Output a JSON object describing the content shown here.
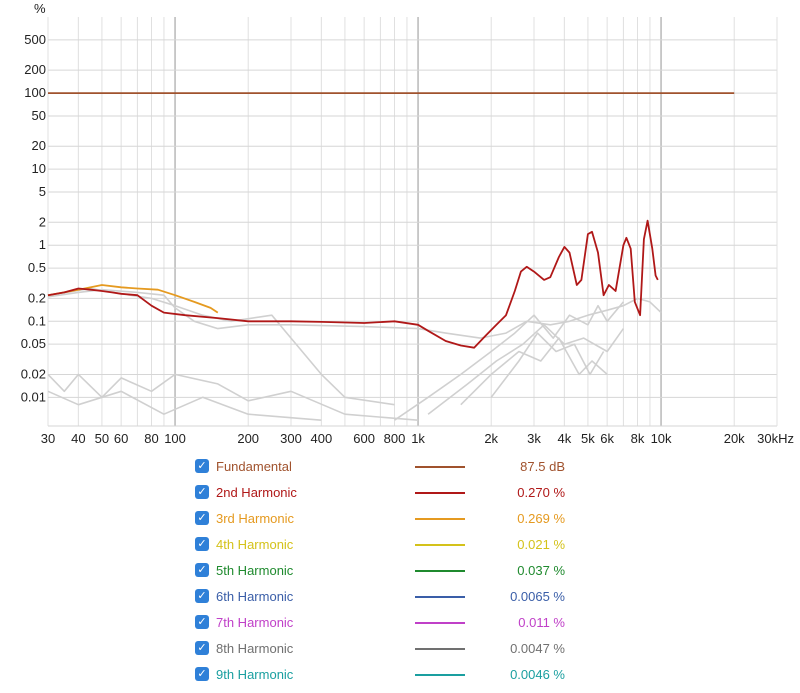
{
  "chart_data": {
    "type": "line",
    "ylabel": "%",
    "y_scale": "log",
    "x_scale": "log",
    "xlim": [
      30,
      30000
    ],
    "ylim": [
      0.0042,
      1000
    ],
    "y_ticks": [
      {
        "v": 500,
        "label": "500"
      },
      {
        "v": 200,
        "label": "200"
      },
      {
        "v": 100,
        "label": "100"
      },
      {
        "v": 50,
        "label": "50"
      },
      {
        "v": 20,
        "label": "20"
      },
      {
        "v": 10,
        "label": "10"
      },
      {
        "v": 5,
        "label": "5"
      },
      {
        "v": 2,
        "label": "2"
      },
      {
        "v": 1,
        "label": "1"
      },
      {
        "v": 0.5,
        "label": "0.5"
      },
      {
        "v": 0.2,
        "label": "0.2"
      },
      {
        "v": 0.1,
        "label": "0.1"
      },
      {
        "v": 0.05,
        "label": "0.05"
      },
      {
        "v": 0.02,
        "label": "0.02"
      },
      {
        "v": 0.01,
        "label": "0.01"
      }
    ],
    "x_ticks": [
      {
        "v": 30,
        "label": "30"
      },
      {
        "v": 40,
        "label": "40"
      },
      {
        "v": 50,
        "label": "50"
      },
      {
        "v": 60,
        "label": "60"
      },
      {
        "v": 80,
        "label": "80"
      },
      {
        "v": 100,
        "label": "100"
      },
      {
        "v": 200,
        "label": "200"
      },
      {
        "v": 300,
        "label": "300"
      },
      {
        "v": 400,
        "label": "400"
      },
      {
        "v": 600,
        "label": "600"
      },
      {
        "v": 800,
        "label": "800"
      },
      {
        "v": 1000,
        "label": "1k"
      },
      {
        "v": 2000,
        "label": "2k"
      },
      {
        "v": 3000,
        "label": "3k"
      },
      {
        "v": 4000,
        "label": "4k"
      },
      {
        "v": 5000,
        "label": "5k"
      },
      {
        "v": 6000,
        "label": "6k"
      },
      {
        "v": 8000,
        "label": "8k"
      },
      {
        "v": 10000,
        "label": "10k"
      },
      {
        "v": 20000,
        "label": "20k"
      },
      {
        "v": 30000,
        "label": "30kHz"
      }
    ],
    "grid": true,
    "legend_position": "bottom",
    "series": [
      {
        "name": "Fundamental",
        "value": "87.5 dB",
        "color": "#a0522d",
        "points": [
          [
            30,
            100
          ],
          [
            20000,
            100
          ]
        ]
      },
      {
        "name": "2nd Harmonic",
        "value": "0.270 %",
        "color": "#b01818",
        "points": [
          [
            30,
            0.22
          ],
          [
            35,
            0.24
          ],
          [
            40,
            0.27
          ],
          [
            45,
            0.26
          ],
          [
            50,
            0.25
          ],
          [
            55,
            0.24
          ],
          [
            60,
            0.23
          ],
          [
            70,
            0.22
          ],
          [
            80,
            0.16
          ],
          [
            90,
            0.13
          ],
          [
            110,
            0.12
          ],
          [
            150,
            0.11
          ],
          [
            200,
            0.1
          ],
          [
            300,
            0.1
          ],
          [
            400,
            0.098
          ],
          [
            600,
            0.095
          ],
          [
            800,
            0.1
          ],
          [
            1000,
            0.09
          ],
          [
            1100,
            0.075
          ],
          [
            1300,
            0.055
          ],
          [
            1500,
            0.048
          ],
          [
            1700,
            0.045
          ],
          [
            1900,
            0.065
          ],
          [
            2100,
            0.09
          ],
          [
            2300,
            0.12
          ],
          [
            2500,
            0.25
          ],
          [
            2650,
            0.45
          ],
          [
            2800,
            0.52
          ],
          [
            3000,
            0.45
          ],
          [
            3300,
            0.35
          ],
          [
            3500,
            0.38
          ],
          [
            3800,
            0.7
          ],
          [
            4000,
            0.95
          ],
          [
            4200,
            0.8
          ],
          [
            4500,
            0.3
          ],
          [
            4700,
            0.35
          ],
          [
            5000,
            1.4
          ],
          [
            5200,
            1.5
          ],
          [
            5500,
            0.8
          ],
          [
            5800,
            0.22
          ],
          [
            6100,
            0.3
          ],
          [
            6500,
            0.25
          ],
          [
            7000,
            1.0
          ],
          [
            7200,
            1.25
          ],
          [
            7500,
            0.9
          ],
          [
            7800,
            0.18
          ],
          [
            8200,
            0.12
          ],
          [
            8500,
            1.2
          ],
          [
            8800,
            2.1
          ],
          [
            9200,
            0.9
          ],
          [
            9500,
            0.4
          ],
          [
            9700,
            0.35
          ]
        ]
      },
      {
        "name": "3rd Harmonic",
        "value": "0.269 %",
        "color": "#e59a20",
        "points": [
          [
            30,
            0.22
          ],
          [
            40,
            0.26
          ],
          [
            50,
            0.3
          ],
          [
            60,
            0.28
          ],
          [
            70,
            0.27
          ],
          [
            85,
            0.26
          ],
          [
            100,
            0.22
          ],
          [
            120,
            0.18
          ],
          [
            140,
            0.15
          ],
          [
            150,
            0.13
          ]
        ]
      },
      {
        "name": "4th Harmonic",
        "value": "0.021 %",
        "color": "#d4c21a",
        "points": []
      },
      {
        "name": "5th Harmonic",
        "value": "0.037 %",
        "color": "#1f8a2e",
        "points": []
      },
      {
        "name": "6th Harmonic",
        "value": "0.0065 %",
        "color": "#3a5ea8",
        "points": []
      },
      {
        "name": "7th Harmonic",
        "value": "0.011 %",
        "color": "#c040c8",
        "points": []
      },
      {
        "name": "8th Harmonic",
        "value": "0.0047 %",
        "color": "#707070",
        "points": []
      },
      {
        "name": "9th Harmonic",
        "value": "0.0046 %",
        "color": "#1a9fa0",
        "points": []
      }
    ],
    "background_series": [
      [
        [
          30,
          0.21
        ],
        [
          40,
          0.24
        ],
        [
          50,
          0.26
        ],
        [
          70,
          0.24
        ],
        [
          90,
          0.22
        ],
        [
          100,
          0.15
        ],
        [
          120,
          0.1
        ],
        [
          150,
          0.08
        ],
        [
          200,
          0.09
        ],
        [
          300,
          0.09
        ],
        [
          600,
          0.085
        ],
        [
          1000,
          0.08
        ],
        [
          1300,
          0.07
        ],
        [
          1800,
          0.06
        ],
        [
          2300,
          0.07
        ],
        [
          2800,
          0.1
        ],
        [
          3500,
          0.09
        ],
        [
          4200,
          0.1
        ],
        [
          5000,
          0.12
        ],
        [
          6000,
          0.14
        ],
        [
          7000,
          0.16
        ],
        [
          8000,
          0.2
        ],
        [
          9000,
          0.18
        ],
        [
          10000,
          0.13
        ]
      ],
      [
        [
          30,
          0.22
        ],
        [
          45,
          0.27
        ],
        [
          60,
          0.23
        ],
        [
          80,
          0.2
        ],
        [
          100,
          0.16
        ],
        [
          130,
          0.12
        ],
        [
          170,
          0.1
        ],
        [
          250,
          0.12
        ],
        [
          300,
          0.06
        ],
        [
          400,
          0.02
        ],
        [
          500,
          0.01
        ],
        [
          800,
          0.008
        ]
      ],
      [
        [
          30,
          0.02
        ],
        [
          35,
          0.012
        ],
        [
          40,
          0.02
        ],
        [
          50,
          0.01
        ],
        [
          60,
          0.018
        ],
        [
          80,
          0.012
        ],
        [
          100,
          0.02
        ],
        [
          150,
          0.015
        ],
        [
          200,
          0.009
        ],
        [
          300,
          0.012
        ],
        [
          500,
          0.006
        ],
        [
          1000,
          0.005
        ]
      ],
      [
        [
          30,
          0.012
        ],
        [
          40,
          0.008
        ],
        [
          60,
          0.012
        ],
        [
          90,
          0.006
        ],
        [
          130,
          0.01
        ],
        [
          200,
          0.006
        ],
        [
          400,
          0.005
        ]
      ],
      [
        [
          800,
          0.005
        ],
        [
          1100,
          0.01
        ],
        [
          1500,
          0.02
        ],
        [
          2000,
          0.04
        ],
        [
          2500,
          0.07
        ],
        [
          3000,
          0.12
        ],
        [
          3600,
          0.06
        ],
        [
          4200,
          0.12
        ],
        [
          5000,
          0.09
        ],
        [
          5500,
          0.16
        ],
        [
          6000,
          0.1
        ],
        [
          7000,
          0.18
        ]
      ],
      [
        [
          1100,
          0.006
        ],
        [
          1600,
          0.015
        ],
        [
          2100,
          0.03
        ],
        [
          2700,
          0.05
        ],
        [
          3300,
          0.09
        ],
        [
          4000,
          0.05
        ],
        [
          4800,
          0.06
        ],
        [
          6000,
          0.04
        ],
        [
          7000,
          0.08
        ]
      ],
      [
        [
          1500,
          0.008
        ],
        [
          2000,
          0.02
        ],
        [
          2600,
          0.04
        ],
        [
          3200,
          0.03
        ],
        [
          3800,
          0.06
        ],
        [
          4600,
          0.02
        ],
        [
          5200,
          0.03
        ],
        [
          6000,
          0.02
        ]
      ],
      [
        [
          2000,
          0.01
        ],
        [
          2600,
          0.03
        ],
        [
          3100,
          0.07
        ],
        [
          3700,
          0.04
        ],
        [
          4400,
          0.05
        ],
        [
          5100,
          0.02
        ],
        [
          5800,
          0.04
        ]
      ]
    ]
  }
}
